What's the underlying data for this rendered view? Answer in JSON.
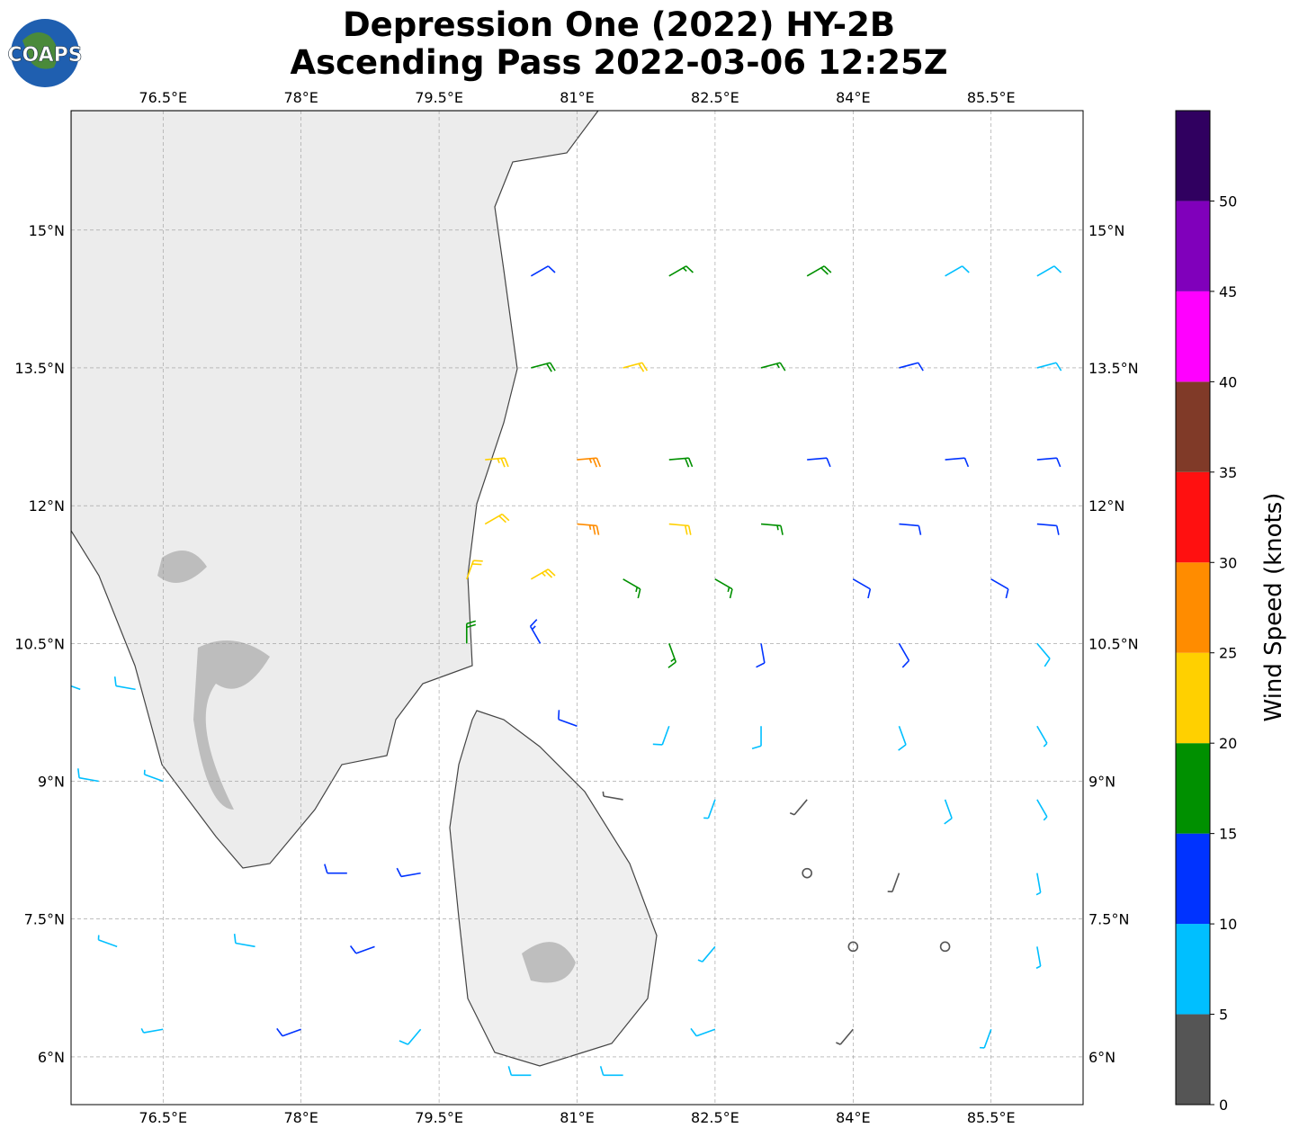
{
  "map": {
    "title": [
      "Depression One (2022) HY-2B",
      "Ascending Pass 2022-03-06 12:25Z"
    ],
    "logo": "COAPS",
    "xlim": [
      75.5,
      86.5
    ],
    "ylim": [
      5.48,
      16.3
    ],
    "xticks": [
      {
        "value": 76.5,
        "label": "76.5°E"
      },
      {
        "value": 78,
        "label": "78°E"
      },
      {
        "value": 79.5,
        "label": "79.5°E"
      },
      {
        "value": 81,
        "label": "81°E"
      },
      {
        "value": 82.5,
        "label": "82.5°E"
      },
      {
        "value": 84,
        "label": "84°E"
      },
      {
        "value": 85.5,
        "label": "85.5°E"
      }
    ],
    "yticks": [
      {
        "value": 6,
        "label": "6°N"
      },
      {
        "value": 7.5,
        "label": "7.5°N"
      },
      {
        "value": 9,
        "label": "9°N"
      },
      {
        "value": 10.5,
        "label": "10.5°N"
      },
      {
        "value": 12,
        "label": "12°N"
      },
      {
        "value": 13.5,
        "label": "13.5°N"
      },
      {
        "value": 15,
        "label": "15°N"
      }
    ],
    "colorbar": {
      "label": "Wind Speed (knots)",
      "lim": [
        0,
        55
      ],
      "ticks": [
        0,
        5,
        10,
        15,
        20,
        25,
        30,
        35,
        40,
        45,
        50
      ],
      "bounds": [
        0,
        5,
        10,
        15,
        20,
        25,
        30,
        35,
        40,
        45,
        50,
        55
      ],
      "colors": [
        "#555555",
        "#00bfff",
        "#0033ff",
        "#009000",
        "#ffd000",
        "#ff8c00",
        "#ff1010",
        "#803a28",
        "#ff00ff",
        "#8000bb",
        "#300060"
      ]
    },
    "barbs": [
      [
        80.5,
        14.5,
        12,
        60
      ],
      [
        82,
        14.5,
        17,
        60
      ],
      [
        83.5,
        14.5,
        18,
        60
      ],
      [
        85,
        14.5,
        9,
        60
      ],
      [
        86,
        14.5,
        8,
        60
      ],
      [
        80.5,
        13.5,
        18,
        75
      ],
      [
        81.5,
        13.5,
        22,
        75
      ],
      [
        83,
        13.5,
        17,
        75
      ],
      [
        84.5,
        13.5,
        12,
        75
      ],
      [
        86,
        13.5,
        8,
        75
      ],
      [
        80,
        12.5,
        23,
        85
      ],
      [
        81,
        12.5,
        26,
        85
      ],
      [
        82,
        12.5,
        18,
        85
      ],
      [
        83.5,
        12.5,
        12,
        85
      ],
      [
        85,
        12.5,
        12,
        85
      ],
      [
        86,
        12.5,
        11,
        85
      ],
      [
        80,
        11.8,
        22,
        60
      ],
      [
        81,
        11.8,
        27,
        95
      ],
      [
        82,
        11.8,
        21,
        95
      ],
      [
        83,
        11.8,
        17,
        95
      ],
      [
        84.5,
        11.8,
        12,
        95
      ],
      [
        86,
        11.8,
        11,
        95
      ],
      [
        79.8,
        11.2,
        22,
        20
      ],
      [
        80.5,
        11.2,
        24,
        60
      ],
      [
        81.5,
        11.2,
        17,
        120
      ],
      [
        82.5,
        11.2,
        17,
        120
      ],
      [
        84,
        11.2,
        12,
        120
      ],
      [
        85.5,
        11.2,
        11,
        120
      ],
      [
        79.8,
        10.5,
        18,
        0
      ],
      [
        80.6,
        10.5,
        14,
        330
      ],
      [
        82,
        10.5,
        17,
        160
      ],
      [
        83,
        10.5,
        12,
        170
      ],
      [
        84.5,
        10.5,
        11,
        150
      ],
      [
        86,
        10.5,
        8,
        140
      ],
      [
        81,
        9.6,
        11,
        290
      ],
      [
        82,
        9.6,
        8,
        200
      ],
      [
        83,
        9.6,
        9,
        180
      ],
      [
        84.5,
        9.6,
        8,
        160
      ],
      [
        86,
        9.6,
        7,
        150
      ],
      [
        81.5,
        8.8,
        3,
        280
      ],
      [
        82.5,
        8.8,
        6,
        200
      ],
      [
        83.5,
        8.8,
        4,
        220
      ],
      [
        85,
        8.8,
        8,
        160
      ],
      [
        86,
        8.8,
        7,
        150
      ],
      [
        78.5,
        8,
        11,
        270
      ],
      [
        79.3,
        8,
        12,
        260
      ],
      [
        83.5,
        8,
        1,
        0
      ],
      [
        84.5,
        8,
        3,
        200
      ],
      [
        86,
        8,
        7,
        170
      ],
      [
        76,
        7.2,
        7,
        290
      ],
      [
        77.5,
        7.2,
        9,
        280
      ],
      [
        78.8,
        7.2,
        12,
        250
      ],
      [
        82.5,
        7.2,
        7,
        220
      ],
      [
        84,
        7.2,
        1,
        0
      ],
      [
        85,
        7.2,
        2,
        0
      ],
      [
        86,
        7.2,
        6,
        170
      ],
      [
        76.5,
        6.3,
        7,
        260
      ],
      [
        78,
        6.3,
        11,
        250
      ],
      [
        79.3,
        6.3,
        9,
        220
      ],
      [
        82.5,
        6.3,
        9,
        250
      ],
      [
        84,
        6.3,
        4,
        220
      ],
      [
        85.5,
        6.3,
        5,
        200
      ],
      [
        80.5,
        5.8,
        8,
        270
      ],
      [
        81.5,
        5.8,
        8,
        270
      ],
      [
        75.6,
        10,
        8,
        290
      ],
      [
        76.2,
        10,
        8,
        280
      ],
      [
        75.8,
        9,
        8,
        280
      ],
      [
        76.5,
        9,
        7,
        290
      ]
    ]
  }
}
